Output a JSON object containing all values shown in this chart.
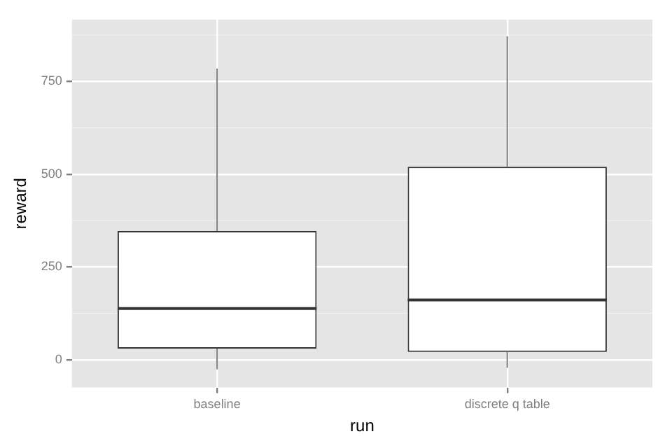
{
  "chart_data": {
    "type": "box",
    "xlabel": "run",
    "ylabel": "reward",
    "categories": [
      "baseline",
      "discrete q table"
    ],
    "boxes": [
      {
        "low": -26,
        "q1": 30,
        "median": 138,
        "q3": 347,
        "high": 785
      },
      {
        "low": -22,
        "q1": 21,
        "median": 161,
        "q3": 520,
        "high": 872
      }
    ],
    "ylim": [
      -75,
      917
    ],
    "yticks": [
      0,
      250,
      500,
      750
    ],
    "grid": true
  }
}
